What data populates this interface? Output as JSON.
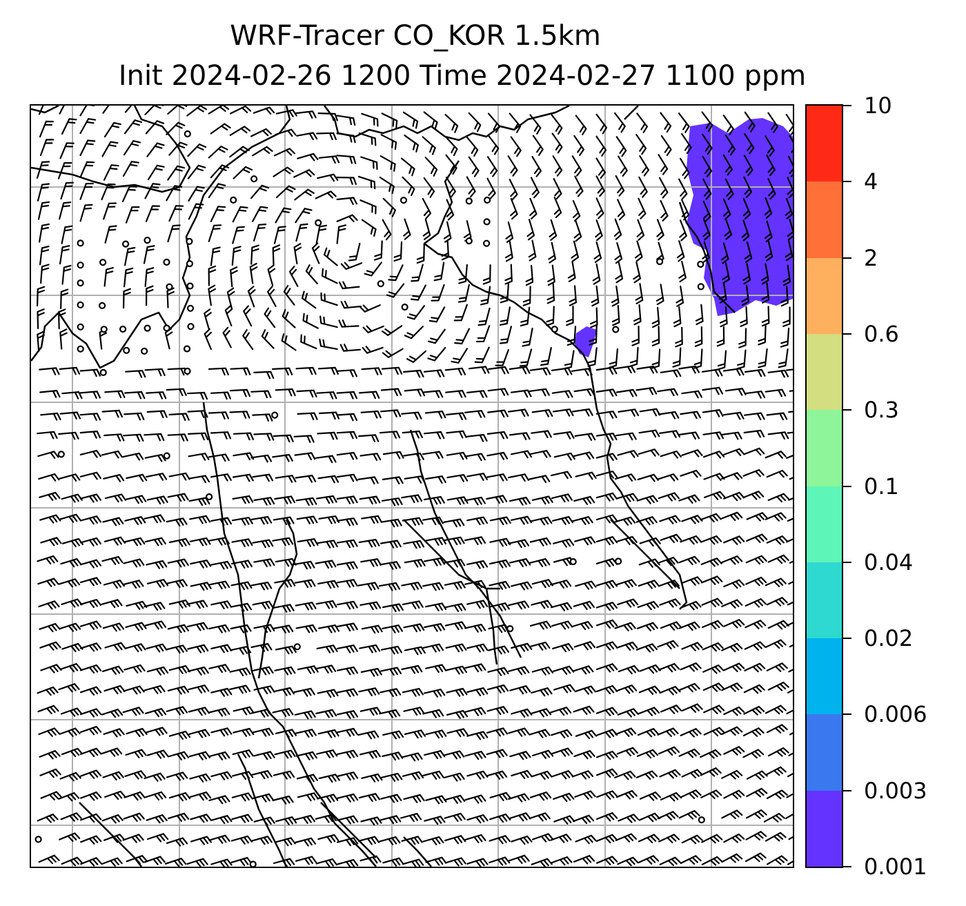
{
  "title": {
    "line1": "WRF-Tracer CO_KOR 1.5km",
    "line2": "Init 2024-02-26 1200 Time 2024-02-27 1100 ppm"
  },
  "map": {
    "field": "CO_KOR tracer concentration",
    "units": "ppm",
    "overlay": "wind barbs",
    "coastlines": true,
    "gridlines": true,
    "gridline_color": "#b0b0b0",
    "plume_color": "#6433ff"
  },
  "colorbar": {
    "levels": [
      "0.001",
      "0.003",
      "0.006",
      "0.02",
      "0.04",
      "0.1",
      "0.3",
      "0.6",
      "2",
      "4",
      "10"
    ],
    "colors": [
      "#6433ff",
      "#3a78f0",
      "#00b3ec",
      "#2ed9d0",
      "#5ef5b8",
      "#8ef59a",
      "#d2de80",
      "#ffb05e",
      "#ff7038",
      "#ff2a16"
    ]
  }
}
